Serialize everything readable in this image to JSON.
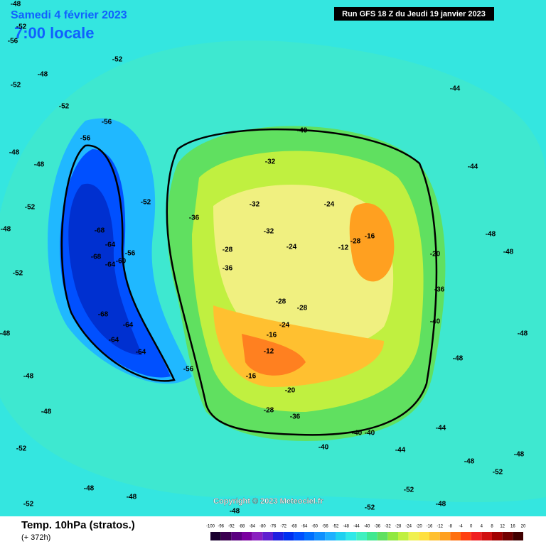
{
  "header": {
    "date": "Samedi 4 février 2023",
    "time": "7:00 locale",
    "run": "Run GFS 18 Z du Jeudi 19 janvier 2023"
  },
  "map": {
    "copyright": "Copyright © 2023 Meteociel.fr",
    "contour_labels": [
      "-48",
      "-52",
      "-48",
      "-52",
      "-56",
      "-52",
      "-48",
      "-52",
      "-56",
      "-56",
      "-48",
      "-52",
      "-48",
      "-52",
      "-48",
      "-48",
      "-68",
      "-64",
      "-68",
      "-64",
      "-60",
      "-56",
      "-68",
      "-64",
      "-64",
      "-64",
      "-56",
      "-48",
      "-52",
      "-48",
      "-48",
      "-52",
      "-40",
      "-36",
      "-32",
      "-32",
      "-32",
      "-28",
      "-28",
      "-24",
      "-24",
      "-28",
      "-16",
      "-12",
      "-20",
      "-36",
      "-40",
      "-44",
      "-48",
      "-48",
      "-48",
      "-48",
      "-40",
      "-40",
      "-36",
      "-28",
      "-20",
      "-16",
      "-12",
      "-16",
      "-24",
      "-28",
      "-44",
      "-44",
      "-48",
      "-52",
      "-48",
      "-48",
      "-52",
      "-52",
      "-52",
      "-48",
      "-44",
      "-40",
      "-40",
      "-36"
    ]
  },
  "footer": {
    "title": "Temp. 10hPa (stratos.)",
    "lead": "(+ 372h)",
    "scale": {
      "labels": [
        "-100",
        "-96",
        "-92",
        "-88",
        "-84",
        "-80",
        "-76",
        "-72",
        "-68",
        "-64",
        "-60",
        "-56",
        "-52",
        "-48",
        "-44",
        "-40",
        "-36",
        "-32",
        "-28",
        "-24",
        "-20",
        "-16",
        "-12",
        "-8",
        "-4",
        "0",
        "4",
        "8",
        "12",
        "16",
        "20"
      ],
      "colors": [
        "#1a0030",
        "#3a0050",
        "#5a0080",
        "#7a00a0",
        "#8a20c0",
        "#6020d0",
        "#2020e0",
        "#0030f0",
        "#0050ff",
        "#0070ff",
        "#1090ff",
        "#20b0ff",
        "#20d0f0",
        "#30e8e8",
        "#40f0c0",
        "#40e890",
        "#60e060",
        "#90e840",
        "#c0f040",
        "#f0f050",
        "#ffe040",
        "#ffc030",
        "#ffa020",
        "#ff7010",
        "#ff4010",
        "#f02020",
        "#d01010",
        "#a00000",
        "#700000",
        "#400000"
      ]
    }
  }
}
